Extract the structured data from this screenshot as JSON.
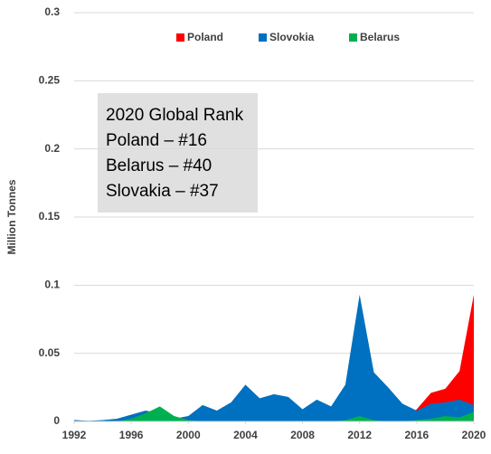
{
  "chart_data": {
    "type": "area",
    "y_label": "Million Tonnes",
    "x": [
      1992,
      1993,
      1994,
      1995,
      1996,
      1997,
      1998,
      1999,
      2000,
      2001,
      2002,
      2003,
      2004,
      2005,
      2006,
      2007,
      2008,
      2009,
      2010,
      2011,
      2012,
      2013,
      2014,
      2015,
      2016,
      2017,
      2018,
      2019,
      2020
    ],
    "series": [
      {
        "name": "Poland",
        "color": "#ff0000",
        "values": [
          0.001,
          0,
          0,
          0,
          0,
          0,
          0,
          0,
          0,
          0,
          0,
          0,
          0,
          0,
          0,
          0,
          0,
          0,
          0,
          0,
          0,
          0,
          0,
          0,
          0.009,
          0.021,
          0.024,
          0.037,
          0.093
        ]
      },
      {
        "name": "Slovokia",
        "color": "#0070c0",
        "values": [
          0.001,
          0.0005,
          0.001,
          0.002,
          0.005,
          0.008,
          0.006,
          0.002,
          0.004,
          0.012,
          0.008,
          0.014,
          0.027,
          0.017,
          0.02,
          0.018,
          0.009,
          0.016,
          0.011,
          0.027,
          0.093,
          0.036,
          0.025,
          0.013,
          0.008,
          0.013,
          0.014,
          0.016,
          0.012
        ]
      },
      {
        "name": "Belarus",
        "color": "#00b050",
        "values": [
          0,
          0,
          0,
          0,
          0.002,
          0.006,
          0.011,
          0.004,
          0.001,
          0,
          0,
          0,
          0,
          0,
          0,
          0,
          0,
          0,
          0,
          0.001,
          0.004,
          0.001,
          0,
          0,
          0.001,
          0.002,
          0.004,
          0.003,
          0.007
        ]
      }
    ],
    "xlim": [
      1992,
      2020
    ],
    "xticks": [
      1992,
      1996,
      2000,
      2004,
      2008,
      2012,
      2016,
      2020
    ],
    "ylim": [
      0,
      0.3
    ],
    "yticks": [
      0,
      0.05,
      0.1,
      0.15,
      0.2,
      0.25,
      0.3
    ],
    "grid": true,
    "legend": "top",
    "annotation": [
      "2020 Global Rank",
      "Poland – #16",
      "Belarus – #40",
      "Slovakia – #37"
    ]
  }
}
